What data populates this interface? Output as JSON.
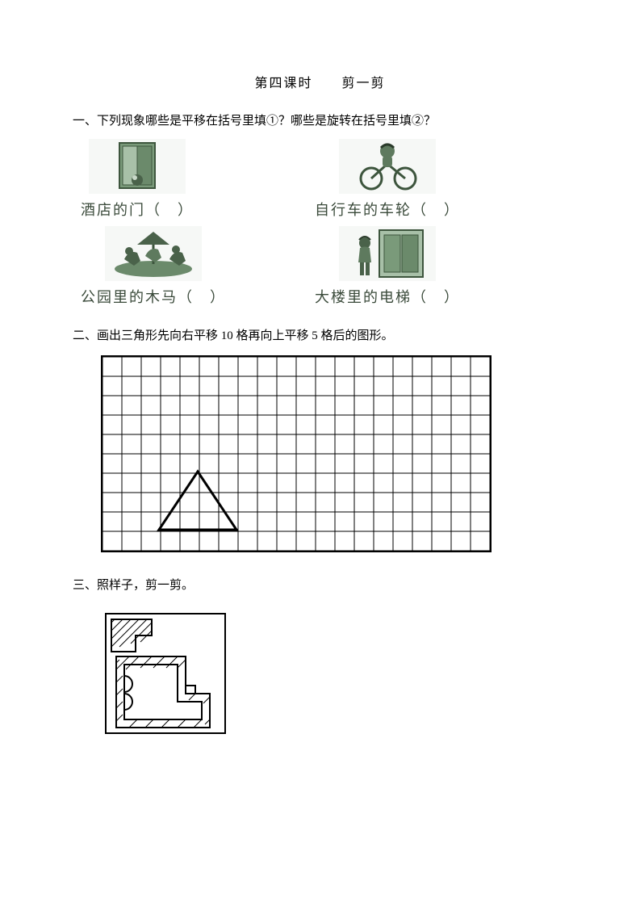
{
  "title": "第四课时　　剪一剪",
  "q1": {
    "text": "一、下列现象哪些是平移在括号里填①？哪些是旋转在括号里填②？",
    "items": {
      "door": {
        "label": "酒店的门（　）",
        "color": "#5e7a5e"
      },
      "wheel": {
        "label": "自行车的车轮（　）",
        "color": "#5e7a5e"
      },
      "horse": {
        "label": "公园里的木马（　）",
        "color": "#5e7a5e"
      },
      "lift": {
        "label": "大楼里的电梯（　）",
        "color": "#5e7a5e"
      }
    }
  },
  "q2": {
    "text": "二、画出三角形先向右平移 10 格再向上平移 5 格后的图形。",
    "grid": {
      "cols": 20,
      "rows": 10,
      "cell": 24,
      "border_color": "#000000",
      "line_color": "#000000",
      "triangle_pts": "72,216 168,216 120,144",
      "stroke_w": 3
    }
  },
  "q3": {
    "text": "三、照样子，剪一剪。",
    "paper": {
      "size": 150,
      "border_color": "#000000",
      "line_color": "#333333"
    }
  },
  "colors": {
    "page_bg": "#ffffff",
    "text": "#000000"
  }
}
